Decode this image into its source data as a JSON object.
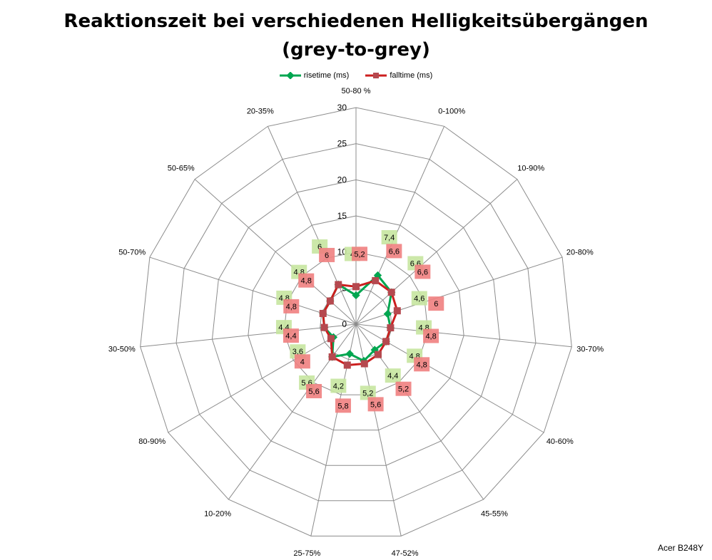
{
  "title_line1": "Reaktionszeit bei verschiedenen Helligkeitsübergängen",
  "title_line2": "(grey-to-grey)",
  "watermark": "Acer B248Y",
  "chart_data": {
    "type": "radar",
    "title": "Reaktionszeit bei verschiedenen Helligkeitsübergängen (grey-to-grey)",
    "categories": [
      "50-80 %",
      "0-100%",
      "10-90%",
      "20-80%",
      "30-70%",
      "40-60%",
      "45-55%",
      "47-52%",
      "25-75%",
      "10-20%",
      "80-90%",
      "30-50%",
      "50-70%",
      "50-65%",
      "20-35%"
    ],
    "series": [
      {
        "name": "risetime (ms)",
        "color": "#00a650",
        "label_bg": "#c6e6a0",
        "values": [
          4,
          7.4,
          6.6,
          4.6,
          4.8,
          4.8,
          4.4,
          5.2,
          4.2,
          5.6,
          3.6,
          4.4,
          4.8,
          4.8,
          6
        ]
      },
      {
        "name": "falltime (ms)",
        "color": "#cc1f1f",
        "marker_color": "#b5494f",
        "label_bg": "#f08080",
        "values": [
          5.2,
          6.6,
          6.6,
          6,
          4.8,
          4.8,
          5.2,
          5.6,
          5.8,
          5.6,
          4,
          4.4,
          4.8,
          4.8,
          6
        ]
      }
    ],
    "rlim": [
      0,
      30
    ],
    "ticks": [
      0,
      5,
      10,
      15,
      20,
      25,
      30
    ],
    "tick_labels": [
      "0",
      "5",
      "10",
      "15",
      "20",
      "25",
      "30"
    ],
    "grid": true,
    "legend_position": "top",
    "data_labels": true
  }
}
